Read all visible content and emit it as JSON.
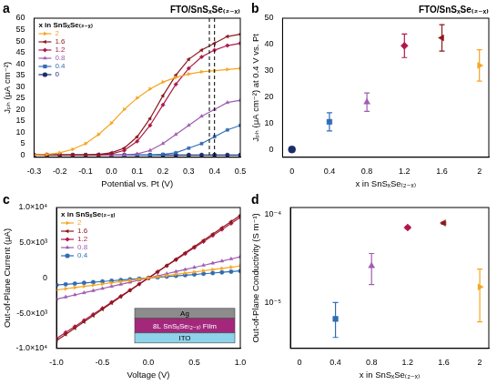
{
  "chart_data": [
    {
      "panel": "a",
      "type": "line",
      "title": "FTO/SnSₓSe₍₂₋ₓ₎",
      "x_label": "Potential vs. Pt (V)",
      "y_label": "Jₚₕ (μA cm⁻²)",
      "x": [
        -0.3,
        -0.25,
        -0.2,
        -0.15,
        -0.1,
        -0.05,
        0,
        0.05,
        0.1,
        0.15,
        0.2,
        0.25,
        0.3,
        0.35,
        0.4,
        0.45,
        0.5
      ],
      "series": [
        {
          "name": "2",
          "color": "#F5A623",
          "marker": "triangle-right",
          "line_style": "solid",
          "values": [
            0,
            0.3,
            1,
            2.5,
            5,
            9,
            14,
            20,
            25,
            29,
            32,
            34,
            35.5,
            36.5,
            37,
            37.5,
            38
          ]
        },
        {
          "name": "1.6",
          "color": "#8B1A1A",
          "marker": "triangle-left",
          "line_style": "solid",
          "values": [
            0,
            0,
            0,
            0,
            0,
            0.3,
            1,
            3,
            8,
            16,
            26,
            35,
            42,
            46,
            49,
            52,
            53
          ]
        },
        {
          "name": "1.2",
          "color": "#B0184A",
          "marker": "diamond",
          "line_style": "solid",
          "values": [
            0,
            0,
            0,
            0,
            0,
            0,
            0.5,
            2,
            6,
            13,
            22,
            31,
            38,
            43,
            46,
            48,
            49
          ]
        },
        {
          "name": "0.8",
          "color": "#A05CB0",
          "marker": "triangle-up",
          "line_style": "solid",
          "values": [
            0,
            0,
            0,
            0,
            0,
            0,
            0,
            0,
            0.5,
            2,
            5,
            9,
            13,
            17,
            20,
            23,
            24
          ]
        },
        {
          "name": "0.4",
          "color": "#2F6DB5",
          "marker": "square",
          "line_style": "solid",
          "values": [
            0,
            0,
            0,
            0,
            0,
            0,
            0,
            0,
            0,
            0,
            0.3,
            1,
            3,
            5,
            8,
            11,
            13
          ]
        },
        {
          "name": "0",
          "color": "#1A2D6B",
          "marker": "circle",
          "line_style": "solid",
          "values": [
            0,
            0,
            0,
            0,
            0,
            0,
            0,
            0,
            0,
            0,
            0,
            0,
            0,
            0,
            0,
            0,
            0
          ]
        }
      ],
      "xlim": [
        -0.3,
        0.5
      ],
      "xticks": [
        -0.3,
        -0.2,
        -0.1,
        {
          "value": 0,
          "label": "0.0"
        },
        0.1,
        0.2,
        0.3,
        0.4,
        0.5
      ],
      "ylim": [
        -1,
        60
      ],
      "yticks": [
        0,
        5,
        10,
        15,
        20,
        25,
        30,
        35,
        40,
        45,
        50,
        55,
        60
      ],
      "legend": "upper left",
      "legend_title": "x in SnSₓSe₍₂₋ₓ₎",
      "vertical_lines": {
        "x": [
          0.38,
          0.4
        ],
        "line_style": "dashed"
      },
      "grid": false
    },
    {
      "panel": "b",
      "type": "scatter",
      "title": "FTO/SnSₓSe₍₂₋ₓ₎",
      "x_label": "x in SnSₓSe₍₂₋ₓ₎",
      "y_label": "Jₚₕ (μA cm⁻²) at 0.4 V vs. Pt",
      "x": [
        0,
        0.4,
        0.8,
        1.2,
        1.6,
        2
      ],
      "values": [
        0,
        10.5,
        18,
        39.5,
        42.5,
        32
      ],
      "errors": [
        0,
        3.5,
        3.5,
        4.5,
        5,
        6
      ],
      "colors": [
        "#1A2D6B",
        "#2F6DB5",
        "#A05CB0",
        "#B0184A",
        "#8B1A1A",
        "#F5A623"
      ],
      "marker": [
        "circle",
        "square",
        "triangle-up",
        "diamond",
        "triangle-left",
        "triangle-right"
      ],
      "xlim": [
        -0.1,
        2.1
      ],
      "xticks": [
        0,
        0.4,
        0.8,
        1.2,
        1.6,
        2
      ],
      "ylim": [
        -3,
        50
      ],
      "yticks": [
        0,
        10,
        20,
        30,
        40,
        50
      ],
      "grid": false
    },
    {
      "panel": "c",
      "type": "line",
      "x_label": "Voltage (V)",
      "y_label": "Out-of-Plane Current (μA)",
      "x": [
        -1,
        -0.9,
        -0.8,
        -0.7,
        -0.6,
        -0.5,
        -0.4,
        -0.3,
        -0.2,
        -0.1,
        0,
        0.1,
        0.2,
        0.3,
        0.4,
        0.5,
        0.6,
        0.7,
        0.8,
        0.9,
        1
      ],
      "series": [
        {
          "name": "2",
          "color": "#F5A623",
          "marker": "triangle-right",
          "line_style": "solid",
          "values": [
            -1700,
            -1530,
            -1360,
            -1190,
            -1020,
            -850,
            -680,
            -510,
            -340,
            -170,
            0,
            170,
            340,
            510,
            680,
            850,
            1020,
            1190,
            1360,
            1530,
            1700
          ]
        },
        {
          "name": "1.6",
          "color": "#8B1A1A",
          "marker": "triangle-left",
          "line_style": "solid",
          "values": [
            -8900,
            -8010,
            -7120,
            -6230,
            -5340,
            -4450,
            -3560,
            -2670,
            -1780,
            -890,
            0,
            890,
            1780,
            2670,
            3560,
            4450,
            5340,
            6230,
            7120,
            8010,
            8900
          ]
        },
        {
          "name": "1.2",
          "color": "#B0184A",
          "marker": "diamond",
          "line_style": "solid",
          "values": [
            -8600,
            -7740,
            -6880,
            -6020,
            -5160,
            -4300,
            -3440,
            -2580,
            -1720,
            -860,
            0,
            860,
            1720,
            2580,
            3440,
            4300,
            5160,
            6020,
            6880,
            7740,
            8600
          ]
        },
        {
          "name": "0.8",
          "color": "#A05CB0",
          "marker": "triangle-up",
          "line_style": "solid",
          "values": [
            -3000,
            -2700,
            -2400,
            -2100,
            -1800,
            -1500,
            -1200,
            -900,
            -600,
            -300,
            0,
            300,
            600,
            900,
            1200,
            1500,
            1800,
            2100,
            2400,
            2700,
            3000
          ]
        },
        {
          "name": "0.4",
          "color": "#2F6DB5",
          "marker": "circle",
          "line_style": "solid",
          "values": [
            -1000,
            -900,
            -800,
            -700,
            -600,
            -500,
            -400,
            -300,
            -200,
            -100,
            0,
            100,
            200,
            300,
            400,
            500,
            600,
            700,
            800,
            900,
            1000
          ]
        }
      ],
      "xlim": [
        -1,
        1
      ],
      "xticks": [
        {
          "value": -1,
          "label": "-1.0"
        },
        {
          "value": -0.5,
          "label": "-0.5"
        },
        {
          "value": 0,
          "label": "0.0"
        },
        0.5,
        {
          "value": 1,
          "label": "1.0"
        }
      ],
      "ylim": [
        -10000,
        10000
      ],
      "yticks": [
        {
          "value": -10000,
          "label": "-1.0×10⁴"
        },
        {
          "value": -5000,
          "label": "-5.0×10³"
        },
        0,
        {
          "value": 5000,
          "label": "5.0×10³"
        },
        {
          "value": 10000,
          "label": "1.0×10⁴"
        }
      ],
      "legend": "upper left",
      "legend_title": "x in SnSₓSe₍₂₋ₓ₎",
      "inset": {
        "layers": [
          "Ag",
          "8L SnSₓSe₍₂₋ₓ₎ Film",
          "ITO"
        ]
      },
      "grid": false
    },
    {
      "panel": "d",
      "type": "scatter",
      "log": "y",
      "x_label": "x in SnSₓSe₍₂₋ₓ₎",
      "y_label": "Out-of-Plane Conductivity (S m⁻¹)",
      "x": [
        0.4,
        0.8,
        1.2,
        1.6,
        2
      ],
      "values": [
        6.5e-06,
        2.6e-05,
        7.1e-05,
        8e-05,
        1.5e-05
      ],
      "lower": [
        4e-06,
        1.6e-05,
        6.9e-05,
        7.8e-05,
        6e-06
      ],
      "upper": [
        1e-05,
        3.6e-05,
        7.3e-05,
        8.2e-05,
        2.4e-05
      ],
      "colors": [
        "#2F6DB5",
        "#A05CB0",
        "#B0184A",
        "#8B1A1A",
        "#F5A623"
      ],
      "marker": [
        "square",
        "triangle-up",
        "diamond",
        "triangle-left",
        "triangle-right"
      ],
      "xlim": [
        -0.1,
        2.1
      ],
      "xticks": [
        0,
        0.4,
        0.8,
        1.2,
        1.6,
        2
      ],
      "ylim": [
        3e-06,
        0.00012
      ],
      "yticks": [
        {
          "value": 1e-05,
          "label": "10⁻⁵"
        },
        {
          "value": 0.0001,
          "label": "10⁻⁴"
        }
      ],
      "grid": false
    }
  ]
}
